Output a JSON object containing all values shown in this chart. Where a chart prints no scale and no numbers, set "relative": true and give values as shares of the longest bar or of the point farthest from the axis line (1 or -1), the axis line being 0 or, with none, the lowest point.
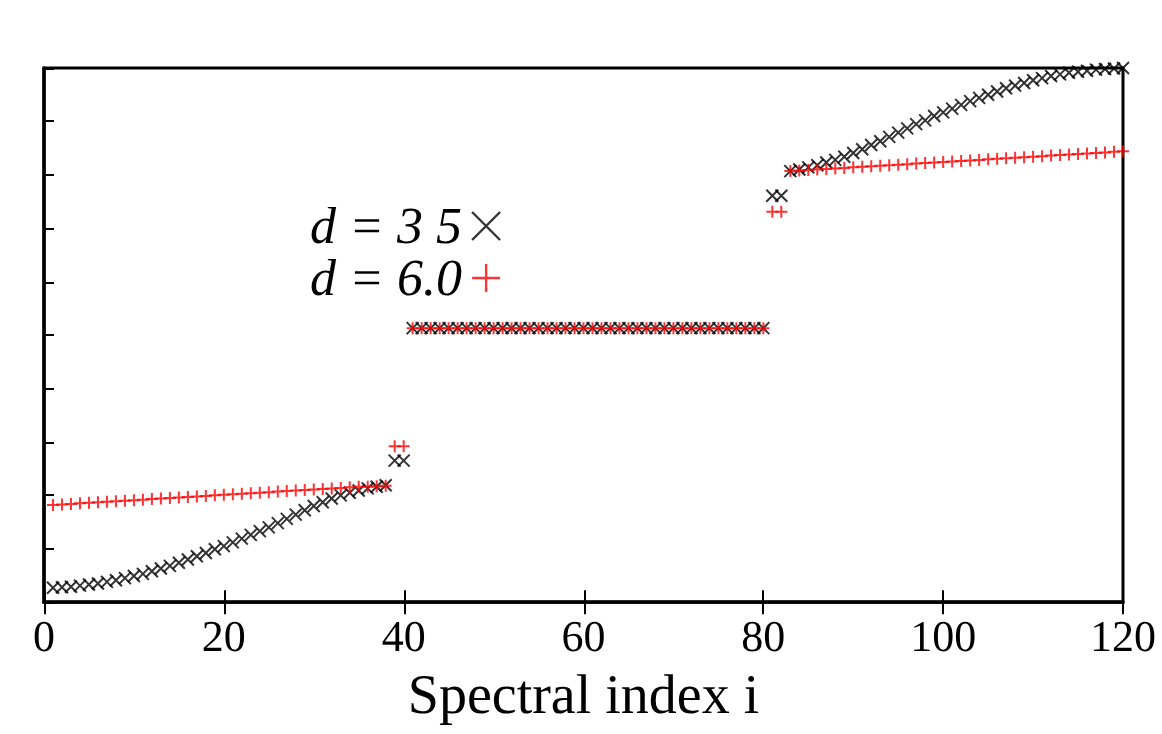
{
  "chart_data": {
    "type": "scatter",
    "relative": true,
    "xlabel": "Spectral index i",
    "x": [
      1,
      2,
      3,
      4,
      5,
      6,
      7,
      8,
      9,
      10,
      11,
      12,
      13,
      14,
      15,
      16,
      17,
      18,
      19,
      20,
      21,
      22,
      23,
      24,
      25,
      26,
      27,
      28,
      29,
      30,
      31,
      32,
      33,
      34,
      35,
      36,
      37,
      38,
      39,
      40,
      41,
      42,
      43,
      44,
      45,
      46,
      47,
      48,
      49,
      50,
      51,
      52,
      53,
      54,
      55,
      56,
      57,
      58,
      59,
      60,
      61,
      62,
      63,
      64,
      65,
      66,
      67,
      68,
      69,
      70,
      71,
      72,
      73,
      74,
      75,
      76,
      77,
      78,
      79,
      80,
      81,
      82,
      83,
      84,
      85,
      86,
      87,
      88,
      89,
      90,
      91,
      92,
      93,
      94,
      95,
      96,
      97,
      98,
      99,
      100,
      101,
      102,
      103,
      104,
      105,
      106,
      107,
      108,
      109,
      110,
      111,
      112,
      113,
      114,
      115,
      116,
      117,
      118,
      119,
      120
    ],
    "xlim": [
      0,
      120
    ],
    "xticks": [
      0,
      20,
      40,
      60,
      80,
      100,
      120
    ],
    "grid": false,
    "legend": "top left",
    "series": [
      {
        "name": "d = 3 5",
        "color": "#000000",
        "marker": "cross",
        "values": [
          0.027,
          0.028,
          0.029,
          0.031,
          0.033,
          0.035,
          0.038,
          0.041,
          0.045,
          0.049,
          0.053,
          0.058,
          0.063,
          0.068,
          0.074,
          0.08,
          0.086,
          0.092,
          0.099,
          0.105,
          0.112,
          0.119,
          0.126,
          0.133,
          0.14,
          0.148,
          0.156,
          0.164,
          0.172,
          0.18,
          0.187,
          0.194,
          0.2,
          0.205,
          0.209,
          0.213,
          0.216,
          0.219,
          0.265,
          0.265,
          0.513,
          0.513,
          0.513,
          0.513,
          0.513,
          0.513,
          0.513,
          0.513,
          0.513,
          0.513,
          0.513,
          0.513,
          0.513,
          0.513,
          0.513,
          0.513,
          0.513,
          0.513,
          0.513,
          0.513,
          0.513,
          0.513,
          0.513,
          0.513,
          0.513,
          0.513,
          0.513,
          0.513,
          0.513,
          0.513,
          0.513,
          0.513,
          0.513,
          0.513,
          0.513,
          0.513,
          0.513,
          0.513,
          0.513,
          0.513,
          0.761,
          0.761,
          0.807,
          0.81,
          0.814,
          0.818,
          0.823,
          0.828,
          0.834,
          0.841,
          0.848,
          0.856,
          0.863,
          0.871,
          0.879,
          0.887,
          0.895,
          0.902,
          0.91,
          0.917,
          0.924,
          0.931,
          0.938,
          0.944,
          0.95,
          0.956,
          0.962,
          0.967,
          0.972,
          0.977,
          0.981,
          0.985,
          0.988,
          0.991,
          0.993,
          0.995,
          0.997,
          0.998,
          0.999,
          1
        ]
      },
      {
        "name": "d = 6.0",
        "color": "#ff0000",
        "marker": "plus",
        "values": [
          0.182,
          0.183,
          0.184,
          0.185,
          0.186,
          0.187,
          0.188,
          0.189,
          0.19,
          0.191,
          0.192,
          0.193,
          0.194,
          0.195,
          0.196,
          0.197,
          0.198,
          0.199,
          0.2,
          0.201,
          0.202,
          0.203,
          0.204,
          0.205,
          0.206,
          0.207,
          0.208,
          0.209,
          0.21,
          0.211,
          0.212,
          0.213,
          0.214,
          0.215,
          0.216,
          0.216,
          0.217,
          0.218,
          0.292,
          0.292,
          0.513,
          0.513,
          0.513,
          0.513,
          0.513,
          0.513,
          0.513,
          0.513,
          0.513,
          0.513,
          0.513,
          0.513,
          0.513,
          0.513,
          0.513,
          0.513,
          0.513,
          0.513,
          0.513,
          0.513,
          0.513,
          0.513,
          0.513,
          0.513,
          0.513,
          0.513,
          0.513,
          0.513,
          0.513,
          0.513,
          0.513,
          0.513,
          0.513,
          0.513,
          0.513,
          0.513,
          0.513,
          0.513,
          0.513,
          0.513,
          0.731,
          0.731,
          0.807,
          0.808,
          0.809,
          0.81,
          0.811,
          0.812,
          0.813,
          0.814,
          0.815,
          0.816,
          0.817,
          0.818,
          0.819,
          0.82,
          0.821,
          0.822,
          0.823,
          0.824,
          0.825,
          0.826,
          0.827,
          0.828,
          0.829,
          0.83,
          0.831,
          0.832,
          0.833,
          0.834,
          0.835,
          0.836,
          0.837,
          0.838,
          0.839,
          0.84,
          0.841,
          0.842,
          0.843,
          0.844
        ]
      }
    ]
  }
}
